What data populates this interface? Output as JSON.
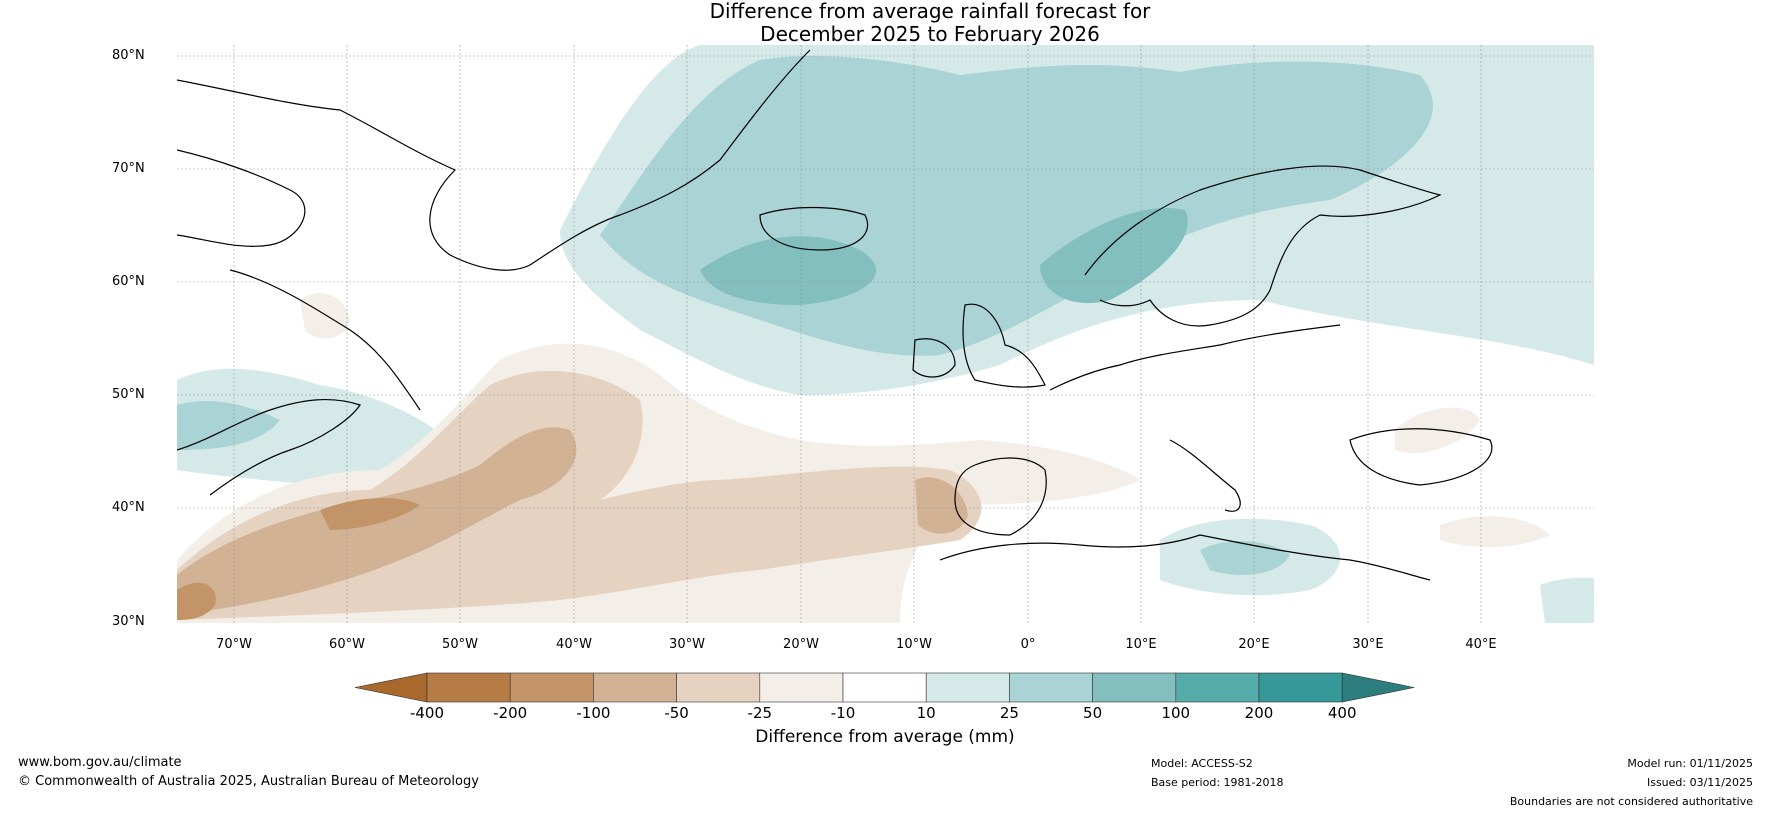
{
  "title": {
    "line1": "Difference from average rainfall forecast for",
    "line2": "December 2025 to February 2026"
  },
  "map": {
    "lat_labels": [
      "80°N",
      "70°N",
      "60°N",
      "50°N",
      "40°N",
      "30°N"
    ],
    "lon_labels": [
      "70°W",
      "60°W",
      "50°W",
      "40°W",
      "30°W",
      "20°W",
      "10°W",
      "0°",
      "10°E",
      "20°E",
      "30°E",
      "40°E"
    ]
  },
  "colorbar": {
    "ticks": [
      "-400",
      "-200",
      "-100",
      "-50",
      "-25",
      "-10",
      "10",
      "25",
      "50",
      "100",
      "200",
      "400"
    ],
    "colors": [
      "#a9682c",
      "#b57c45",
      "#c39468",
      "#d2b294",
      "#e5d2c0",
      "#f3eee8",
      "#ffffff",
      "#d5e9e9",
      "#a9d3d4",
      "#83bfbf",
      "#56abab",
      "#369898",
      "#2b7d7e"
    ],
    "label": "Difference from average (mm)"
  },
  "footer": {
    "site": "www.bom.gov.au/climate",
    "copyright": "© Commonwealth of Australia 2025, Australian Bureau of Meteorology",
    "model": "Model: ACCESS-S2",
    "base_period": "Base period: 1981-2018",
    "model_run": "Model run: 01/11/2025",
    "issued": "Issued: 03/11/2025",
    "disclaimer": "Boundaries are not considered authoritative"
  }
}
